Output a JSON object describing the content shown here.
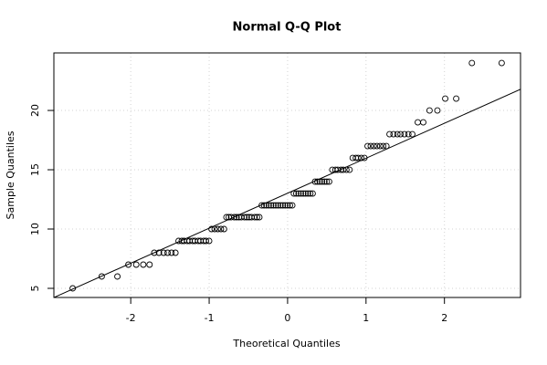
{
  "chart_data": {
    "type": "scatter",
    "title": "Normal Q-Q Plot",
    "x_label": "Theoretical Quantiles",
    "y_label": "Sample Quantiles",
    "x": [
      -2.74,
      -2.37,
      -2.17,
      -2.03,
      -1.93,
      -1.84,
      -1.76,
      -1.7,
      -1.64,
      -1.58,
      -1.53,
      -1.48,
      -1.43,
      -1.39,
      -1.35,
      -1.32,
      -1.28,
      -1.25,
      -1.21,
      -1.18,
      -1.14,
      -1.11,
      -1.07,
      -1.04,
      -1.0,
      -0.97,
      -0.93,
      -0.89,
      -0.85,
      -0.81,
      -0.78,
      -0.75,
      -0.72,
      -0.68,
      -0.65,
      -0.62,
      -0.59,
      -0.55,
      -0.52,
      -0.49,
      -0.46,
      -0.42,
      -0.39,
      -0.36,
      -0.33,
      -0.3,
      -0.27,
      -0.24,
      -0.21,
      -0.18,
      -0.15,
      -0.12,
      -0.09,
      -0.06,
      -0.03,
      0.0,
      0.03,
      0.06,
      0.08,
      0.11,
      0.14,
      0.17,
      0.2,
      0.23,
      0.26,
      0.29,
      0.32,
      0.35,
      0.38,
      0.41,
      0.44,
      0.47,
      0.5,
      0.53,
      0.57,
      0.61,
      0.64,
      0.68,
      0.71,
      0.75,
      0.79,
      0.83,
      0.87,
      0.9,
      0.94,
      0.98,
      1.02,
      1.06,
      1.1,
      1.14,
      1.18,
      1.22,
      1.26,
      1.3,
      1.35,
      1.4,
      1.44,
      1.49,
      1.54,
      1.59,
      1.66,
      1.73,
      1.81,
      1.91,
      2.01,
      2.15,
      2.35,
      2.73
    ],
    "y": [
      5,
      6,
      6,
      7,
      7,
      7,
      7,
      8,
      8,
      8,
      8,
      8,
      8,
      9,
      9,
      9,
      9,
      9,
      9,
      9,
      9,
      9,
      9,
      9,
      9,
      10,
      10,
      10,
      10,
      10,
      11,
      11,
      11,
      11,
      11,
      11,
      11,
      11,
      11,
      11,
      11,
      11,
      11,
      11,
      12,
      12,
      12,
      12,
      12,
      12,
      12,
      12,
      12,
      12,
      12,
      12,
      12,
      12,
      13,
      13,
      13,
      13,
      13,
      13,
      13,
      13,
      13,
      14,
      14,
      14,
      14,
      14,
      14,
      14,
      15,
      15,
      15,
      15,
      15,
      15,
      15,
      16,
      16,
      16,
      16,
      16,
      17,
      17,
      17,
      17,
      17,
      17,
      17,
      18,
      18,
      18,
      18,
      18,
      18,
      18,
      19,
      19,
      20,
      20,
      21,
      21,
      24,
      24
    ],
    "xlim": [
      -2.98,
      2.97
    ],
    "ylim": [
      4.23,
      24.85
    ],
    "xticks": [
      -2,
      -1,
      0,
      1,
      2
    ],
    "yticks": [
      5,
      10,
      15,
      20
    ],
    "grid": true,
    "color": "#000000",
    "ref_line": {
      "intercept": 13.02,
      "slope": 2.95,
      "color": "#000000"
    }
  }
}
